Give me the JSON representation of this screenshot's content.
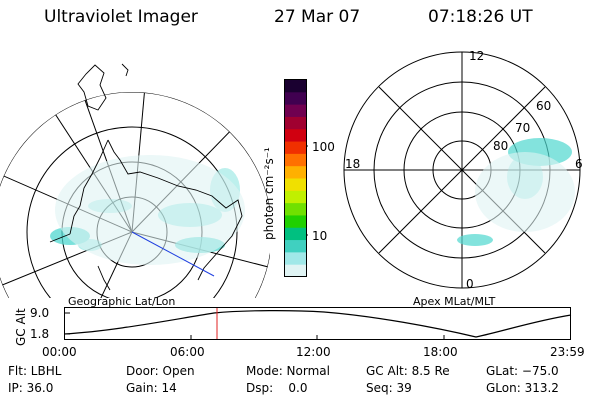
{
  "header": {
    "instrument": "Ultraviolet Imager",
    "date": "27 Mar 07",
    "time": "07:18:26 UT"
  },
  "colorbar": {
    "unit_label": "photon cm⁻²s⁻¹",
    "tick_labels": [
      "100",
      "10"
    ],
    "colors": [
      "#1a0030",
      "#400050",
      "#700050",
      "#a00030",
      "#d00010",
      "#f03000",
      "#ff7000",
      "#ffb000",
      "#f0e000",
      "#c0f000",
      "#70e000",
      "#20d000",
      "#00c080",
      "#40d0c0",
      "#a0e8e8",
      "#e0f4f4"
    ]
  },
  "left_panel": {
    "caption": "Geographic Lat/Lon",
    "aurora_color": "#50d8d0"
  },
  "right_panel": {
    "caption": "Apex MLat/MLT",
    "mlt_labels": [
      "12",
      "18",
      "6",
      "0"
    ],
    "mlat_labels": [
      "60",
      "70",
      "80"
    ],
    "aurora_color": "#50d8d0"
  },
  "altitude_plot": {
    "ylabel": "GC Alt",
    "ytick_top": "9.0",
    "ytick_bottom": "1.8",
    "xticks": [
      "00:00",
      "06:00",
      "12:00",
      "18:00",
      "23:59"
    ],
    "marker_time": "07:18",
    "marker_color": "#e02020"
  },
  "status": {
    "flt": "Flt: LBHL",
    "ip": "IP: 36.0",
    "door": "Door: Open",
    "gain": "Gain: 14",
    "mode": "Mode: Normal",
    "dsp": "Dsp:    0.0",
    "gc_alt": "GC Alt: 8.5 Re",
    "seq": "Seq: 39",
    "glat": "GLat: −75.0",
    "glon": "GLon: 313.2"
  }
}
